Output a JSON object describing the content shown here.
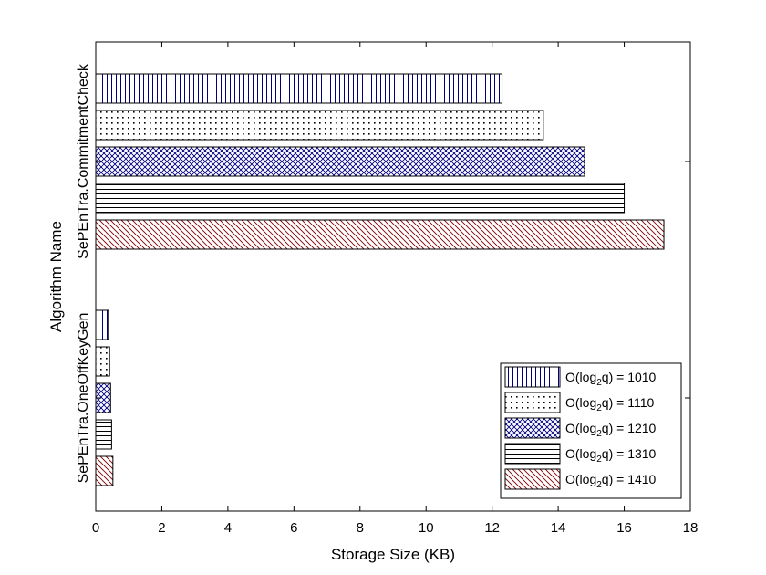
{
  "chart_data": {
    "type": "bar",
    "orientation": "horizontal",
    "title": "",
    "xlabel": "Storage Size (KB)",
    "ylabel": "Algorithm Name",
    "xlim": [
      0,
      18
    ],
    "xticks": [
      0,
      2,
      4,
      6,
      8,
      10,
      12,
      14,
      16,
      18
    ],
    "grid": false,
    "legend_position": "bottom-right",
    "categories": [
      "SePEnTra.OneOffKeyGen",
      "SePEnTra.CommitmentCheck"
    ],
    "series": [
      {
        "name": "O(log2q) = 1010",
        "legend_base": "O(log",
        "legend_sub": "2",
        "legend_rest": "q) = 1010",
        "pattern": "vertical",
        "color": "#00007f",
        "values": [
          0.38,
          12.3
        ]
      },
      {
        "name": "O(log2q) = 1110",
        "legend_base": "O(log",
        "legend_sub": "2",
        "legend_rest": "q) = 1110",
        "pattern": "dots",
        "color": "#000000",
        "values": [
          0.42,
          13.55
        ]
      },
      {
        "name": "O(log2q) = 1210",
        "legend_base": "O(log",
        "legend_sub": "2",
        "legend_rest": "q) = 1210",
        "pattern": "crosshatch",
        "color": "#00007f",
        "values": [
          0.45,
          14.8
        ]
      },
      {
        "name": "O(log2q) = 1310",
        "legend_base": "O(log",
        "legend_sub": "2",
        "legend_rest": "q) = 1310",
        "pattern": "horizontal",
        "color": "#000000",
        "values": [
          0.48,
          16.0
        ]
      },
      {
        "name": "O(log2q) = 1410",
        "legend_base": "O(log",
        "legend_sub": "2",
        "legend_rest": "q) = 1410",
        "pattern": "diagonal",
        "color": "#7f0000",
        "values": [
          0.52,
          17.2
        ]
      }
    ]
  }
}
